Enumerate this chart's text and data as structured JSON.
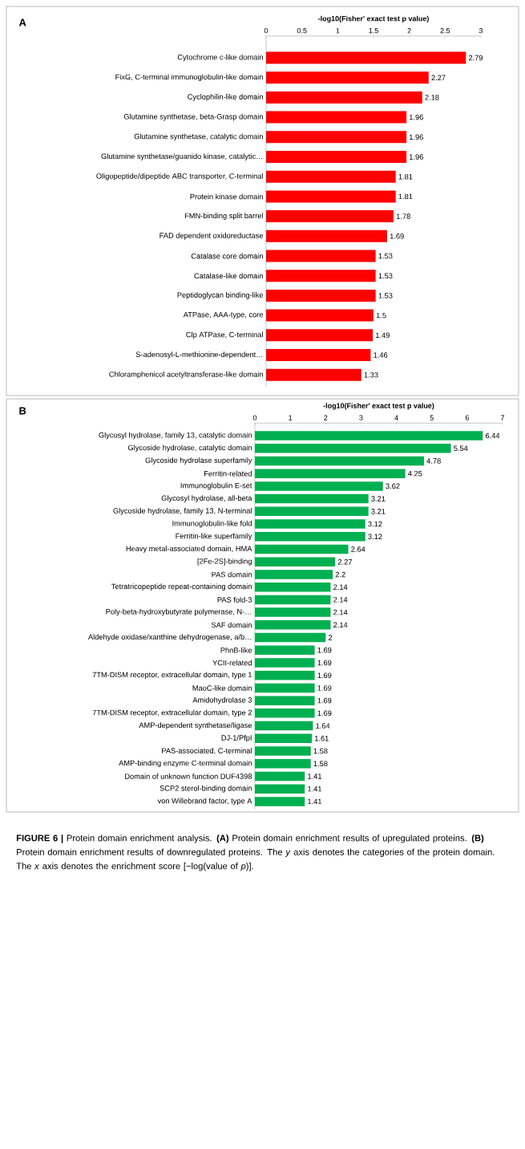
{
  "chart_data": [
    {
      "type": "bar",
      "orientation": "horizontal",
      "annotations": [
        "A"
      ],
      "xlabel": "-log10(Fisher' exact test p value)",
      "categories": [
        "Cytochrome c-like domain",
        "FixG, C-terminal immunoglobulin-like domain",
        "Cyclophilin-like domain",
        "Glutamine synthetase, beta-Grasp domain",
        "Glutamine synthetase, catalytic domain",
        "Glutamine synthetase/guanido kinase, catalytic…",
        "Oligopeptide/dipeptide ABC transporter, C-terminal",
        "Protein kinase domain",
        "FMN-binding split barrel",
        "FAD dependent oxidoreductase",
        "Catalase core domain",
        "Catalase-like domain",
        "Peptidoglycan binding-like",
        "ATPase, AAA-type, core",
        "Clp ATPase, C-terminal",
        "S-adenosyl-L-methionine-dependent…",
        "Chloramphenicol acetyltransferase-like domain"
      ],
      "values": [
        2.79,
        2.27,
        2.18,
        1.96,
        1.96,
        1.96,
        1.81,
        1.81,
        1.78,
        1.69,
        1.53,
        1.53,
        1.53,
        1.5,
        1.49,
        1.46,
        1.33
      ],
      "color": "#ff0000",
      "xlim": [
        0,
        3
      ],
      "xticks": [
        0,
        0.5,
        1,
        1.5,
        2,
        2.5,
        3
      ],
      "data_labels": true
    },
    {
      "type": "bar",
      "orientation": "horizontal",
      "xlabel": "-log10(Fisher' exact test p value)",
      "categories": [
        "Glycosyl hydrolase, family 13, catalytic domain",
        "Glycoside hydrolase, catalytic domain",
        "Glycoside hydrolase superfamily",
        "Ferritin-related",
        "Immunoglobulin E-set",
        "Glycosyl hydrolase, all-beta",
        "Glycoside hydrolase, family 13, N-terminal",
        "Immunoglobulin-like fold",
        "Ferritin-like superfamily",
        "Heavy metal-associated domain, HMA",
        "[2Fe-2S]-binding",
        "PAS domain",
        "Tetratricopeptide repeat-containing domain",
        "PAS fold-3",
        "Poly-beta-hydroxybutyrate polymerase, N-…",
        "SAF domain",
        "Aldehyde oxidase/xanthine dehydrogenase, a/b…",
        "PhnB-like",
        "YCII-related",
        "7TM-DISM receptor, extracellular domain, type 1",
        "MaoC-like domain",
        "Amidohydrolase 3",
        "7TM-DISM receptor, extracellular domain, type 2",
        "AMP-dependent synthetase/ligase",
        "DJ-1/PfpI",
        "PAS-associated, C-terminal",
        "AMP-binding enzyme C-terminal domain",
        "Domain of unknown function DUF4398",
        "SCP2 sterol-binding domain",
        "von Willebrand factor, type A"
      ],
      "values": [
        6.44,
        5.54,
        4.78,
        4.25,
        3.62,
        3.21,
        3.21,
        3.12,
        3.12,
        2.64,
        2.27,
        2.2,
        2.14,
        2.14,
        2.14,
        2.14,
        2,
        1.69,
        1.69,
        1.69,
        1.69,
        1.69,
        1.69,
        1.64,
        1.61,
        1.58,
        1.58,
        1.41,
        1.41,
        1.41
      ],
      "color": "#00b050",
      "xlim": [
        0,
        7
      ],
      "xticks": [
        0,
        1,
        2,
        3,
        4,
        5,
        6,
        7
      ],
      "data_labels": true,
      "annotations": [
        "B",
        "**FIGURE 6 |** Protein domain enrichment analysis. **(A)** Protein domain enrichment results of upregulated proteins. **(B)** Protein domain enrichment results of downregulated proteins. The *y* axis denotes the categories of the protein domain. The *x* axis denotes the enrichment score [−log(value of *p*)]."
      ]
    }
  ]
}
